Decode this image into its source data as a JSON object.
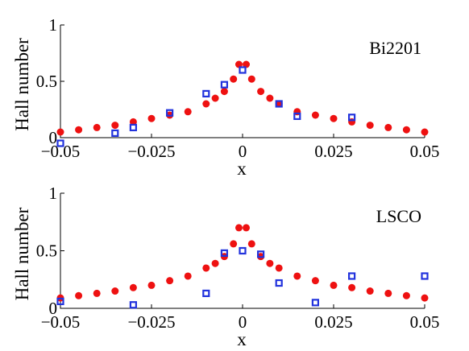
{
  "chart_data": [
    {
      "type": "scatter",
      "annotation": "Bi2201",
      "xlabel": "x",
      "ylabel": "Hall number",
      "xlim": [
        -0.05,
        0.05
      ],
      "ylim": [
        0,
        1
      ],
      "xticks": [
        -0.05,
        -0.025,
        0,
        0.025,
        0.05
      ],
      "xtick_labels": [
        "−0.05",
        "−0.025",
        "0",
        "0.025",
        "0.05"
      ],
      "yticks": [
        0,
        0.5,
        1
      ],
      "ytick_labels": [
        "0",
        "0.5",
        "1"
      ],
      "grid": false,
      "series": [
        {
          "marker": "filled-circle",
          "color": "#ee1111",
          "x": [
            -0.05,
            -0.045,
            -0.04,
            -0.035,
            -0.03,
            -0.025,
            -0.02,
            -0.015,
            -0.01,
            -0.0075,
            -0.005,
            -0.0025,
            -0.001,
            0.001,
            0.0025,
            0.005,
            0.0075,
            0.01,
            0.015,
            0.02,
            0.025,
            0.03,
            0.035,
            0.04,
            0.045,
            0.05
          ],
          "y": [
            0.05,
            0.07,
            0.09,
            0.11,
            0.14,
            0.17,
            0.2,
            0.23,
            0.3,
            0.35,
            0.41,
            0.52,
            0.65,
            0.65,
            0.52,
            0.41,
            0.35,
            0.3,
            0.23,
            0.2,
            0.17,
            0.14,
            0.11,
            0.09,
            0.07,
            0.05
          ]
        },
        {
          "marker": "open-square",
          "color": "#2233dd",
          "x": [
            -0.05,
            -0.035,
            -0.03,
            -0.02,
            -0.01,
            -0.005,
            0,
            0.01,
            0.015,
            0.03
          ],
          "y": [
            -0.05,
            0.04,
            0.09,
            0.22,
            0.39,
            0.47,
            0.6,
            0.3,
            0.19,
            0.18
          ]
        }
      ]
    },
    {
      "type": "scatter",
      "annotation": "LSCO",
      "xlabel": "x",
      "ylabel": "Hall number",
      "xlim": [
        -0.05,
        0.05
      ],
      "ylim": [
        0,
        1
      ],
      "xticks": [
        -0.05,
        -0.025,
        0,
        0.025,
        0.05
      ],
      "xtick_labels": [
        "−0.05",
        "−0.025",
        "0",
        "0.025",
        "0.05"
      ],
      "yticks": [
        0,
        0.5,
        1
      ],
      "ytick_labels": [
        "0",
        "0.5",
        "1"
      ],
      "grid": false,
      "series": [
        {
          "marker": "filled-circle",
          "color": "#ee1111",
          "x": [
            -0.05,
            -0.045,
            -0.04,
            -0.035,
            -0.03,
            -0.025,
            -0.02,
            -0.015,
            -0.01,
            -0.0075,
            -0.005,
            -0.0025,
            -0.001,
            0.001,
            0.0025,
            0.005,
            0.0075,
            0.01,
            0.015,
            0.02,
            0.025,
            0.03,
            0.035,
            0.04,
            0.045,
            0.05
          ],
          "y": [
            0.09,
            0.11,
            0.13,
            0.15,
            0.18,
            0.2,
            0.24,
            0.28,
            0.35,
            0.39,
            0.45,
            0.56,
            0.7,
            0.7,
            0.56,
            0.45,
            0.39,
            0.35,
            0.28,
            0.24,
            0.2,
            0.18,
            0.15,
            0.13,
            0.11,
            0.09
          ]
        },
        {
          "marker": "open-square",
          "color": "#2233dd",
          "x": [
            -0.05,
            -0.03,
            -0.01,
            -0.005,
            0,
            0.005,
            0.01,
            0.02,
            0.03,
            0.05
          ],
          "y": [
            0.06,
            0.03,
            0.13,
            0.48,
            0.5,
            0.47,
            0.22,
            0.05,
            0.28,
            0.28
          ]
        }
      ]
    }
  ]
}
